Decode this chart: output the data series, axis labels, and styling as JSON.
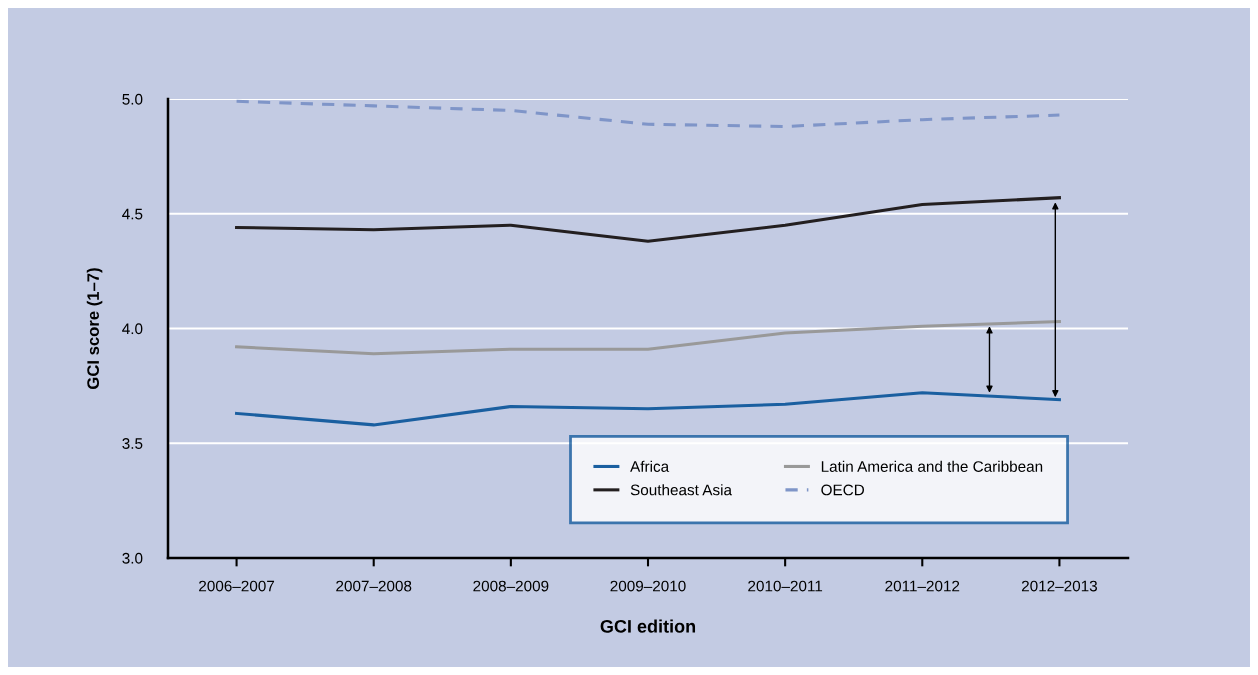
{
  "chart_data": {
    "type": "line",
    "xlabel": "GCI edition",
    "ylabel": "GCI score (1–7)",
    "categories": [
      "2006–2007",
      "2007–2008",
      "2008–2009",
      "2009–2010",
      "2010–2011",
      "2011–2012",
      "2012–2013"
    ],
    "series": [
      {
        "name": "Africa",
        "color": "#1a5fa0",
        "line_style": "solid",
        "values": [
          3.63,
          3.58,
          3.66,
          3.65,
          3.67,
          3.72,
          3.69
        ]
      },
      {
        "name": "Latin America and the Caribbean",
        "color": "#999999",
        "line_style": "solid",
        "values": [
          3.92,
          3.89,
          3.91,
          3.91,
          3.98,
          4.01,
          4.03
        ]
      },
      {
        "name": "Southeast Asia",
        "color": "#231f20",
        "line_style": "solid",
        "values": [
          4.44,
          4.43,
          4.45,
          4.38,
          4.45,
          4.54,
          4.57
        ]
      },
      {
        "name": "OECD",
        "color": "#7f95c8",
        "line_style": "dashed",
        "values": [
          4.99,
          4.97,
          4.95,
          4.89,
          4.88,
          4.91,
          4.93
        ]
      }
    ],
    "ylim": [
      3.0,
      5.0
    ],
    "yticks": [
      {
        "value": 3.0,
        "label": "3.0"
      },
      {
        "value": 3.5,
        "label": "3.5"
      },
      {
        "value": 4.0,
        "label": "4.0"
      },
      {
        "value": 4.5,
        "label": "4.5"
      },
      {
        "value": 5.0,
        "label": "5.0"
      }
    ],
    "grid": "y",
    "legend": "bottom right",
    "marker": "none"
  }
}
